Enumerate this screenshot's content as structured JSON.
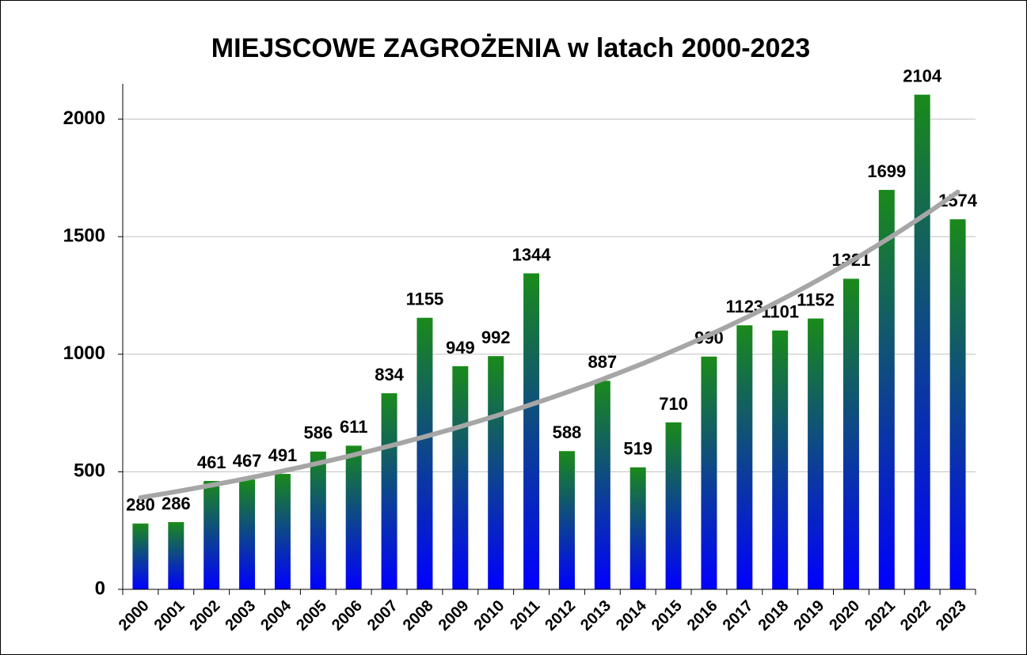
{
  "chart_data": {
    "type": "bar",
    "title": "MIEJSCOWE ZAGROŻENIA w latach 2000-2023",
    "categories": [
      "2000",
      "2001",
      "2002",
      "2003",
      "2004",
      "2005",
      "2006",
      "2007",
      "2008",
      "2009",
      "2010",
      "2011",
      "2012",
      "2013",
      "2014",
      "2015",
      "2016",
      "2017",
      "2018",
      "2019",
      "2020",
      "2021",
      "2022",
      "2023"
    ],
    "values": [
      280,
      286,
      461,
      467,
      491,
      586,
      611,
      834,
      1155,
      949,
      992,
      1344,
      588,
      887,
      519,
      710,
      990,
      1123,
      1101,
      1152,
      1321,
      1699,
      2104,
      1574
    ],
    "color_top": "#1a8a1a",
    "color_bottom": "#0000ff",
    "highlight": {
      "index": 22,
      "color": "#ff0000"
    },
    "trendline": {
      "kind": "exponential",
      "color": "#a6a6a6",
      "values": [
        390,
        1690
      ]
    },
    "ylim": [
      0,
      2150
    ],
    "yticks": [
      0,
      500,
      1000,
      1500,
      2000
    ],
    "grid": true
  }
}
